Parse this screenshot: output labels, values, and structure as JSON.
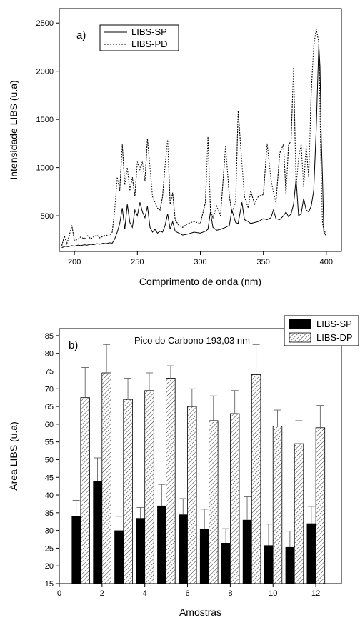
{
  "chart_data": [
    {
      "type": "line",
      "panel_label": "a)",
      "xlabel": "Comprimento de onda (nm)",
      "ylabel": "Intensidade LIBS (u.a)",
      "xlim": [
        188,
        412
      ],
      "ylim": [
        130,
        2650
      ],
      "xticks": [
        200,
        250,
        300,
        350,
        400
      ],
      "yticks": [
        500,
        1000,
        1500,
        2000,
        2500
      ],
      "legend_position": "top-left",
      "series": [
        {
          "name": "LIBS-SP",
          "style": "solid",
          "x": [
            190,
            193,
            195,
            198,
            200,
            203,
            205,
            208,
            210,
            213,
            215,
            218,
            220,
            223,
            225,
            228,
            230,
            232,
            234,
            236,
            238,
            240,
            242,
            244,
            246,
            248,
            250,
            252,
            254,
            256,
            258,
            260,
            262,
            264,
            266,
            268,
            270,
            272,
            274,
            276,
            278,
            280,
            283,
            286,
            290,
            295,
            300,
            304,
            306,
            308,
            310,
            313,
            316,
            320,
            323,
            325,
            328,
            330,
            333,
            335,
            338,
            340,
            343,
            346,
            350,
            353,
            356,
            358,
            360,
            363,
            366,
            368,
            370,
            372,
            374,
            376,
            378,
            380,
            382,
            384,
            386,
            388,
            390,
            392,
            394,
            395,
            396,
            397,
            398,
            400
          ],
          "y": [
            170,
            185,
            180,
            190,
            185,
            195,
            190,
            200,
            195,
            205,
            200,
            210,
            205,
            215,
            210,
            220,
            215,
            260,
            330,
            420,
            580,
            360,
            620,
            430,
            380,
            560,
            500,
            640,
            540,
            480,
            600,
            380,
            330,
            360,
            320,
            340,
            330,
            400,
            520,
            360,
            440,
            340,
            320,
            300,
            310,
            330,
            320,
            340,
            360,
            540,
            380,
            350,
            360,
            380,
            400,
            560,
            430,
            420,
            640,
            460,
            440,
            420,
            430,
            440,
            470,
            460,
            480,
            560,
            470,
            460,
            500,
            540,
            490,
            520,
            620,
            880,
            500,
            520,
            680,
            560,
            540,
            600,
            760,
            1400,
            2270,
            2050,
            1300,
            900,
            330,
            290
          ]
        },
        {
          "name": "LIBS-PD",
          "style": "dashed",
          "x": [
            190,
            192,
            194,
            196,
            198,
            200,
            203,
            205,
            208,
            210,
            213,
            215,
            218,
            220,
            223,
            225,
            228,
            230,
            232,
            234,
            236,
            238,
            240,
            242,
            244,
            246,
            248,
            250,
            252,
            254,
            256,
            258,
            260,
            262,
            264,
            266,
            268,
            270,
            272,
            274,
            276,
            278,
            280,
            283,
            286,
            290,
            295,
            300,
            304,
            306,
            308,
            310,
            313,
            316,
            320,
            323,
            325,
            328,
            330,
            333,
            335,
            338,
            340,
            343,
            346,
            350,
            353,
            356,
            358,
            360,
            363,
            366,
            368,
            370,
            372,
            374,
            376,
            378,
            380,
            382,
            384,
            386,
            388,
            390,
            392,
            394,
            395,
            396,
            397,
            398,
            400
          ],
          "y": [
            190,
            290,
            210,
            300,
            400,
            240,
            260,
            280,
            260,
            300,
            260,
            280,
            300,
            270,
            290,
            300,
            290,
            330,
            560,
            900,
            760,
            1240,
            820,
            1000,
            760,
            900,
            700,
            1060,
            980,
            1060,
            860,
            1300,
            1000,
            700,
            640,
            580,
            560,
            700,
            1020,
            1300,
            620,
            740,
            460,
            400,
            380,
            420,
            440,
            420,
            640,
            1320,
            560,
            480,
            600,
            500,
            1220,
            700,
            540,
            640,
            1590,
            1040,
            700,
            580,
            760,
            620,
            700,
            720,
            1250,
            880,
            740,
            640,
            1150,
            1240,
            720,
            1230,
            1280,
            2040,
            800,
            1100,
            1240,
            800,
            1220,
            900,
            1780,
            2260,
            2440,
            2300,
            1600,
            900,
            420,
            360,
            300
          ]
        }
      ]
    },
    {
      "type": "bar",
      "panel_label": "b)",
      "title": "Pico do Carbono 193,03 nm",
      "xlabel": "Amostras",
      "ylabel": "Área LIBS (u.a)",
      "xlim": [
        0,
        13.2
      ],
      "ylim": [
        15,
        87
      ],
      "xticks": [
        0,
        2,
        4,
        6,
        8,
        10,
        12
      ],
      "yticks": [
        15,
        20,
        25,
        30,
        35,
        40,
        45,
        50,
        55,
        60,
        65,
        70,
        75,
        80,
        85
      ],
      "categories": [
        1,
        2,
        3,
        4,
        5,
        6,
        7,
        8,
        9,
        10,
        11,
        12
      ],
      "legend_position": "top-right (outside)",
      "series": [
        {
          "name": "LIBS-SP",
          "fill": "solid black",
          "values": [
            34.0,
            44.0,
            30.0,
            33.5,
            37.0,
            34.5,
            30.5,
            26.5,
            33.0,
            25.8,
            25.3,
            32.0
          ],
          "errors": [
            4.5,
            6.5,
            4.0,
            3.0,
            6.0,
            4.5,
            5.5,
            4.0,
            6.5,
            6.0,
            4.5,
            4.8
          ]
        },
        {
          "name": "LIBS-DP",
          "fill": "hatched",
          "values": [
            67.5,
            74.5,
            67.0,
            69.5,
            73.0,
            65.0,
            61.0,
            63.0,
            74.0,
            59.5,
            54.5,
            59.0
          ],
          "errors": [
            8.5,
            8.0,
            6.0,
            5.0,
            3.5,
            5.0,
            7.0,
            6.5,
            8.5,
            4.5,
            6.5,
            6.3
          ]
        }
      ]
    }
  ]
}
